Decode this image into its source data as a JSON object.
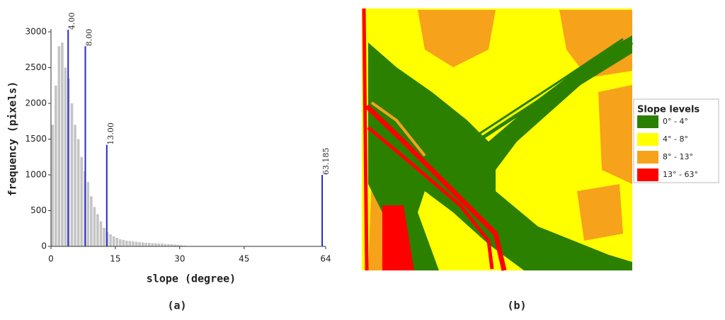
{
  "chart_data": {
    "type": "histogram",
    "panel_label": "(a)",
    "xlabel": "slope (degree)",
    "ylabel": "frequency (pixels)",
    "bins": [
      0,
      0.75,
      1.5,
      2.25,
      3,
      3.75,
      4.5,
      5.25,
      6,
      6.75,
      7.5,
      8.25,
      9,
      9.75,
      10.5,
      11.25,
      12,
      12.75,
      13.5,
      14.25,
      15,
      15.75,
      16.5,
      17.25,
      18,
      18.75,
      19.5,
      20.25,
      21,
      21.75,
      22.5,
      23.25,
      24,
      24.75,
      25.5,
      26.25,
      27,
      27.75,
      28.5,
      29.25,
      30,
      30.75,
      31.5,
      32.25,
      33
    ],
    "counts": [
      1700,
      2250,
      2800,
      2850,
      2500,
      2350,
      2000,
      1700,
      1500,
      1250,
      1050,
      900,
      700,
      550,
      450,
      350,
      260,
      200,
      170,
      140,
      120,
      100,
      90,
      80,
      75,
      70,
      65,
      60,
      55,
      50,
      50,
      45,
      45,
      40,
      40,
      35,
      30,
      30,
      25,
      20,
      15,
      10,
      5,
      5
    ],
    "color": "#c4c4c4",
    "thresholds": [
      {
        "value": 4,
        "label": "4.00",
        "height": 3030
      },
      {
        "value": 8,
        "label": "8.00",
        "height": 2800
      },
      {
        "value": 13,
        "label": "13.00",
        "height": 1420
      },
      {
        "value": 63.185,
        "label": "63.185",
        "height": 1000
      }
    ],
    "threshold_color": "#2a2ac8",
    "xlim": [
      0,
      64
    ],
    "xticks": [
      0,
      15,
      30,
      45,
      64
    ],
    "ylim": [
      0,
      3000
    ],
    "yticks": [
      0,
      500,
      1000,
      1500,
      2000,
      2500,
      3000
    ]
  },
  "map": {
    "panel_label": "(b)",
    "legend_title": "Slope levels",
    "legend": [
      {
        "label": "0° - 4°",
        "color": "#2b8000"
      },
      {
        "label": "4° - 8°",
        "color": "#ffff00"
      },
      {
        "label": "8° - 13°",
        "color": "#f7a21b"
      },
      {
        "label": "13° - 63°",
        "color": "#ff0000"
      }
    ]
  }
}
